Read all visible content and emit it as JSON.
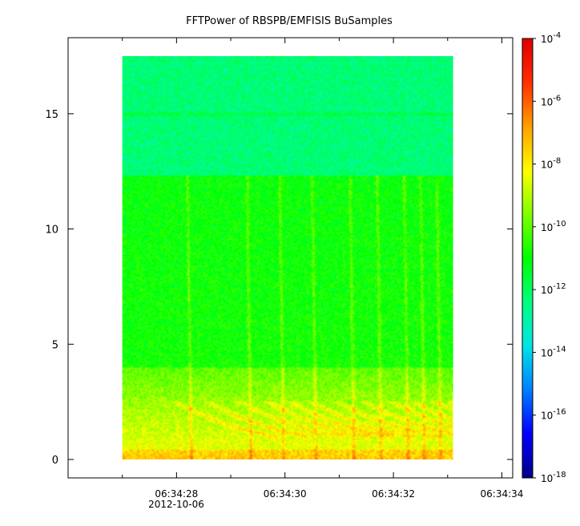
{
  "chart_data": {
    "type": "heatmap",
    "title": "FFTPower of RBSPB/EMFISIS  BuSamples",
    "x_ticks": [
      {
        "value": "06:34:28"
      },
      {
        "value": "06:34:30"
      },
      {
        "value": "06:34:32"
      },
      {
        "value": "06:34:34"
      }
    ],
    "x_minor_ticks": [
      "06:34:27",
      "06:34:29",
      "06:34:31",
      "06:34:33"
    ],
    "x_sublabel": "2012-10-06",
    "x_range_seconds": [
      26.0,
      34.2
    ],
    "data_x_range_seconds": [
      27.0,
      33.1
    ],
    "y_ticks": [
      0,
      5,
      10,
      15
    ],
    "y_range": [
      -0.8,
      18.3
    ],
    "data_y_range": [
      0,
      17.5
    ],
    "colorbar": {
      "scale": "log",
      "range_exp": [
        -18,
        -4
      ],
      "tick_exponents": [
        -4,
        -6,
        -8,
        -10,
        -12,
        -14,
        -16,
        -18
      ],
      "colormap": [
        "#00008b",
        "#0000ff",
        "#0080ff",
        "#00e5e5",
        "#00ff80",
        "#00ff00",
        "#80ff00",
        "#ffff00",
        "#ffa000",
        "#ff3000",
        "#e00000"
      ]
    },
    "grid": false
  }
}
